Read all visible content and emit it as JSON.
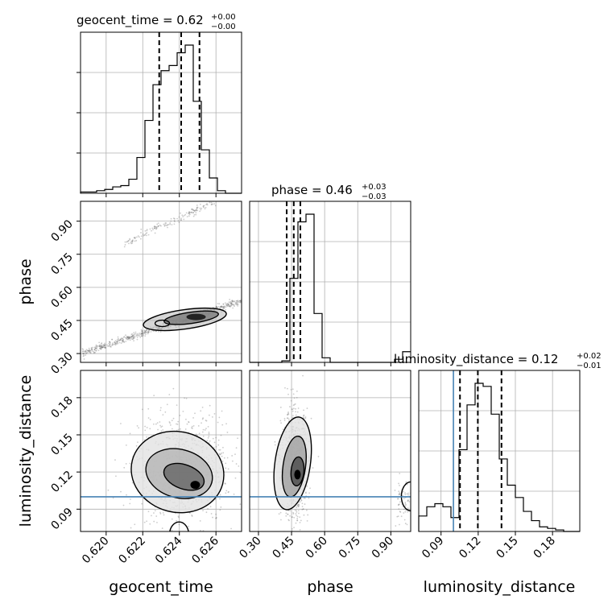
{
  "chart_data": {
    "type": "corner",
    "parameters": [
      "geocent_time",
      "phase",
      "luminosity_distance"
    ],
    "titles": [
      {
        "param": "geocent_time",
        "prefix": "geocent_time = 0.62",
        "plus": "+0.00",
        "minus": "−0.00"
      },
      {
        "param": "phase",
        "prefix": "phase = 0.46",
        "plus": "+0.03",
        "minus": "−0.03"
      },
      {
        "param": "luminosity_distance",
        "prefix": "luminosity_distance = 0.12",
        "plus": "+0.02",
        "minus": "−0.01"
      }
    ],
    "axis_labels": {
      "x": [
        "geocent_time",
        "phase",
        "luminosity_distance"
      ],
      "y": [
        "phase",
        "luminosity_distance"
      ]
    },
    "ranges": {
      "geocent_time": [
        0.6186,
        0.6274
      ],
      "phase": [
        0.26,
        0.99
      ],
      "luminosity_distance": [
        0.072,
        0.202
      ]
    },
    "ticks": {
      "geocent_time": [
        "0.620",
        "0.622",
        "0.624",
        "0.626"
      ],
      "phase": [
        "0.30",
        "0.45",
        "0.60",
        "0.75",
        "0.90"
      ],
      "luminosity_distance": [
        "0.09",
        "0.12",
        "0.15",
        "0.18"
      ]
    },
    "quantiles": {
      "geocent_time": [
        0.6229,
        0.6241,
        0.6251
      ],
      "phase": [
        0.428,
        0.46,
        0.49
      ],
      "luminosity_distance": [
        0.1053,
        0.1197,
        0.1388
      ]
    },
    "truth": {
      "luminosity_distance": 0.1
    },
    "hist_geocent_time": {
      "edges_start": 0.6186,
      "bin_width": 0.00044,
      "counts": [
        1,
        1,
        2,
        3,
        5,
        6,
        11,
        28,
        57,
        85,
        96,
        100,
        110,
        116,
        72,
        34,
        12,
        2,
        0,
        0
      ]
    },
    "hist_phase": {
      "edges_start": 0.26,
      "bin_width": 0.0365,
      "counts": [
        0,
        0,
        0,
        0,
        1,
        55,
        92,
        97,
        32,
        3,
        0,
        0,
        0,
        0,
        0,
        0,
        0,
        0,
        2,
        7
      ]
    },
    "hist_luminosity_distance": {
      "edges_start": 0.072,
      "bin_width": 0.0065,
      "counts": [
        10,
        16,
        18,
        16,
        9,
        53,
        82,
        96,
        94,
        76,
        47,
        30,
        22,
        13,
        7,
        3,
        2,
        1,
        0,
        0
      ]
    },
    "colors": {
      "line": "#000000",
      "truth": "#4682b4",
      "grid": "#b0b0b0",
      "scatter": "#6e6e6e"
    }
  }
}
